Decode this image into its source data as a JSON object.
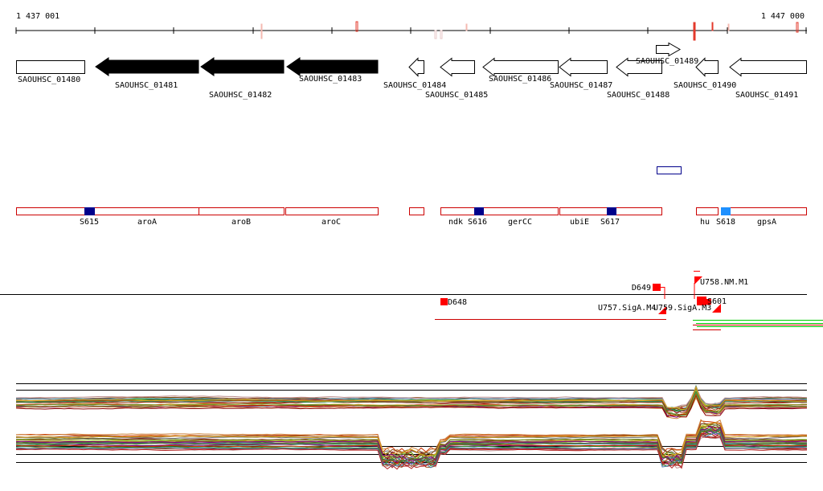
{
  "ruler": {
    "start_label": "1 437 001",
    "end_label": "1 447 000"
  },
  "genes": [
    {
      "label": "SAOUHSC_01480",
      "strand": "+",
      "style": "outline"
    },
    {
      "label": "SAOUHSC_01481",
      "strand": "-",
      "style": "filled"
    },
    {
      "label": "SAOUHSC_01482",
      "strand": "-",
      "style": "filled"
    },
    {
      "label": "SAOUHSC_01483",
      "strand": "-",
      "style": "filled"
    },
    {
      "label": "SAOUHSC_01484",
      "strand": "-",
      "style": "outline"
    },
    {
      "label": "SAOUHSC_01485",
      "strand": "-",
      "style": "outline"
    },
    {
      "label": "SAOUHSC_01486",
      "strand": "-",
      "style": "outline"
    },
    {
      "label": "SAOUHSC_01487",
      "strand": "-",
      "style": "outline"
    },
    {
      "label": "SAOUHSC_01488",
      "strand": "-",
      "style": "outline"
    },
    {
      "label": "SAOUHSC_01489",
      "strand": "+",
      "style": "outline"
    },
    {
      "label": "SAOUHSC_01490",
      "strand": "-",
      "style": "outline"
    },
    {
      "label": "SAOUHSC_01491",
      "strand": "-",
      "style": "outline"
    }
  ],
  "operon_labels": [
    "S615",
    "aroA",
    "aroB",
    "aroC",
    "ndk",
    "S616",
    "gerCC",
    "ubiE",
    "S617",
    "hu",
    "S618",
    "gpsA"
  ],
  "feature_labels": [
    "D649",
    "U758.NM.M1",
    "D648",
    "U757.SigA.M4",
    "U759.SigA.M3",
    "S601"
  ],
  "colors": {
    "gene_filled": "#000000",
    "operon_outline": "#cc0000",
    "feature_red": "#ff0000",
    "sig_dark_blue": "#00008b",
    "sig_light_blue": "#1e90ff",
    "track_green": "#00cc00"
  }
}
